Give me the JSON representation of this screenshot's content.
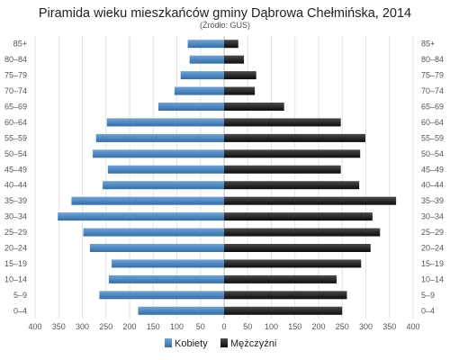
{
  "chart_data": {
    "type": "bar",
    "orientation": "horizontal-pyramid",
    "title": "Piramida wieku mieszkańców gminy Dąbrowa Chełmińska, 2014",
    "subtitle": "(Źródło: GUS)",
    "categories": [
      "85+",
      "80-84",
      "75-79",
      "70-74",
      "65-69",
      "60-64",
      "55-59",
      "50-54",
      "45-49",
      "40-44",
      "35-39",
      "30-34",
      "25-29",
      "20-24",
      "15-19",
      "10-14",
      "5-9",
      "0-4"
    ],
    "series": [
      {
        "name": "Kobiety",
        "color": "#4a86c0",
        "values": [
          77,
          73,
          92,
          105,
          139,
          248,
          271,
          278,
          246,
          257,
          323,
          352,
          298,
          284,
          238,
          244,
          264,
          182
        ]
      },
      {
        "name": "Mężczyźni",
        "color": "#1e1e1e",
        "values": [
          30,
          42,
          68,
          65,
          127,
          247,
          299,
          288,
          247,
          286,
          364,
          314,
          330,
          310,
          290,
          238,
          260,
          250
        ]
      }
    ],
    "x_ticks": [
      "400",
      "350",
      "300",
      "250",
      "200",
      "150",
      "100",
      "50",
      "0",
      "50",
      "100",
      "150",
      "200",
      "250",
      "300",
      "350",
      "400"
    ],
    "xlim": [
      -400,
      400
    ],
    "grid": true,
    "legend_position": "bottom-center"
  }
}
